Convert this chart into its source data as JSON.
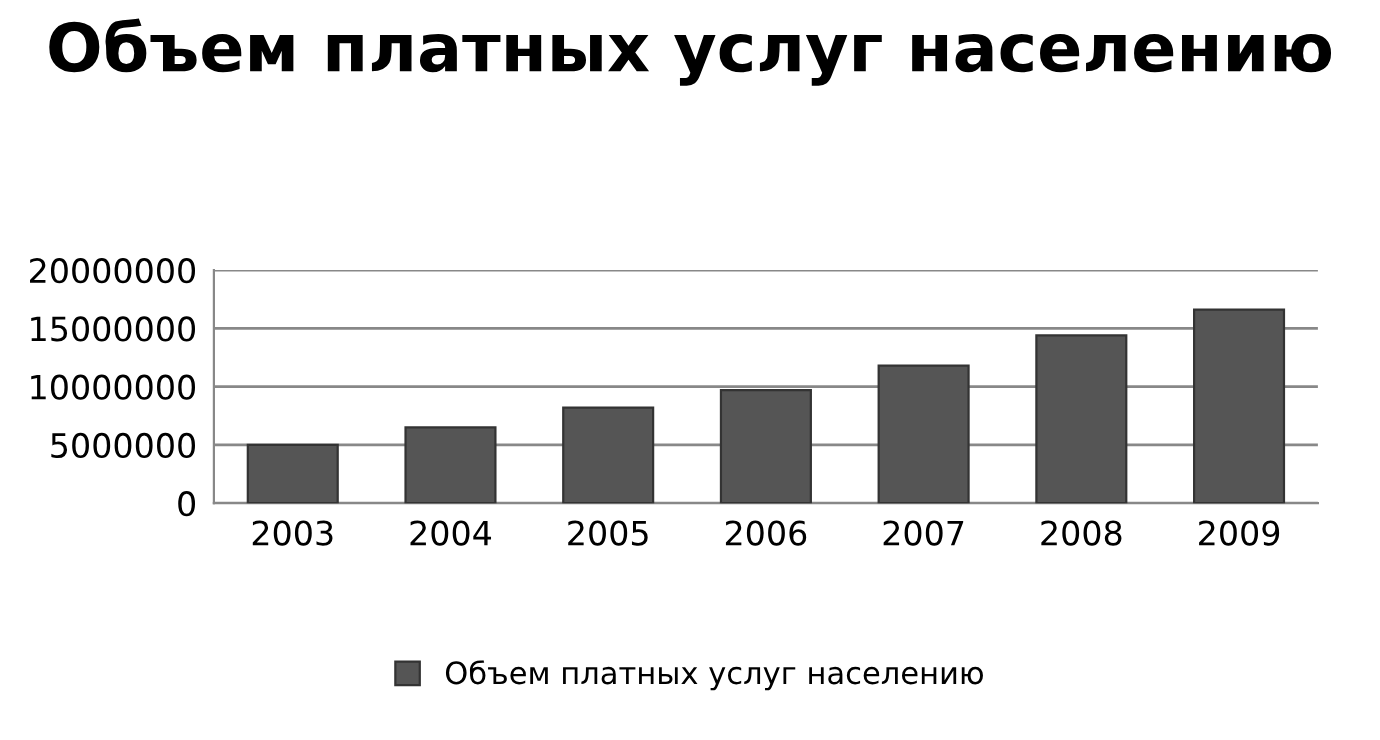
{
  "chart_data": {
    "type": "bar",
    "title": "Объем платных услуг населению",
    "categories": [
      "2003",
      "2004",
      "2005",
      "2006",
      "2007",
      "2008",
      "2009"
    ],
    "series": [
      {
        "name": "Объем платных услуг населению",
        "color": "#555555",
        "values": [
          5000000,
          6500000,
          8200000,
          9700000,
          11800000,
          14400000,
          16600000
        ]
      }
    ],
    "ylim": [
      0,
      20000000
    ],
    "yticks": [
      0,
      5000000,
      10000000,
      15000000,
      20000000
    ],
    "grid": "y",
    "legend": "bottom"
  }
}
